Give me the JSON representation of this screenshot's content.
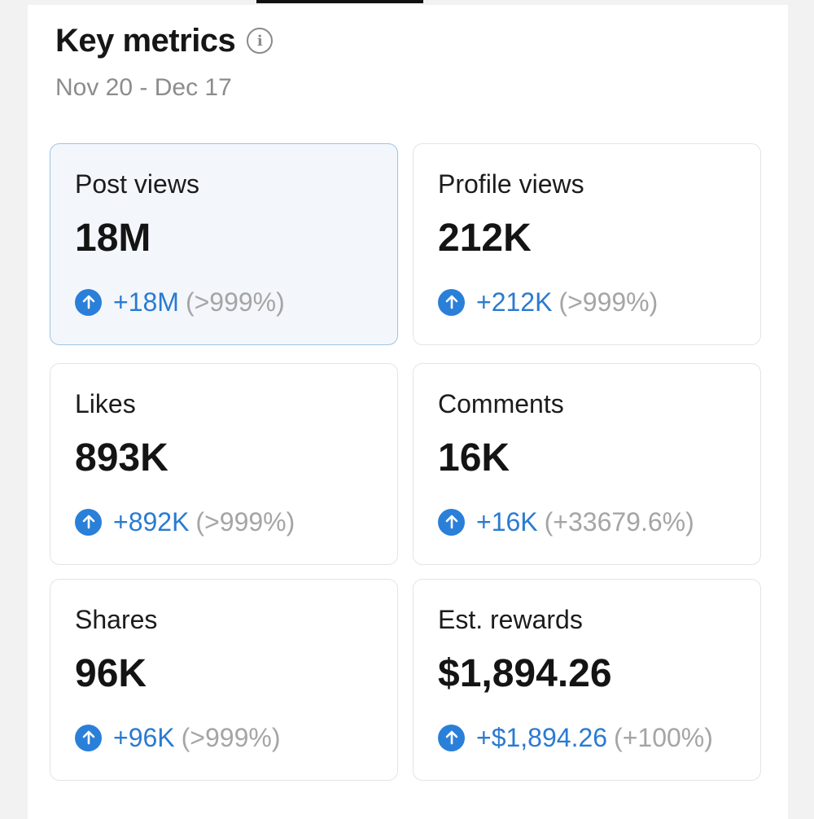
{
  "header": {
    "title": "Key metrics",
    "date_range": "Nov 20 - Dec 17"
  },
  "colors": {
    "accent": "#2a7fd8",
    "selected_bg": "#f3f7fc",
    "selected_border": "#9ec3e3"
  },
  "metrics": [
    {
      "label": "Post views",
      "value": "18M",
      "change": "+18M",
      "percent": "(>999%)",
      "selected": true
    },
    {
      "label": "Profile views",
      "value": "212K",
      "change": "+212K",
      "percent": "(>999%)",
      "selected": false
    },
    {
      "label": "Likes",
      "value": "893K",
      "change": "+892K",
      "percent": "(>999%)",
      "selected": false
    },
    {
      "label": "Comments",
      "value": "16K",
      "change": "+16K",
      "percent": "(+33679.6%)",
      "selected": false
    },
    {
      "label": "Shares",
      "value": "96K",
      "change": "+96K",
      "percent": "(>999%)",
      "selected": false
    },
    {
      "label": "Est. rewards",
      "value": "$1,894.26",
      "change": "+$1,894.26",
      "percent": "(+100%)",
      "selected": false
    }
  ]
}
